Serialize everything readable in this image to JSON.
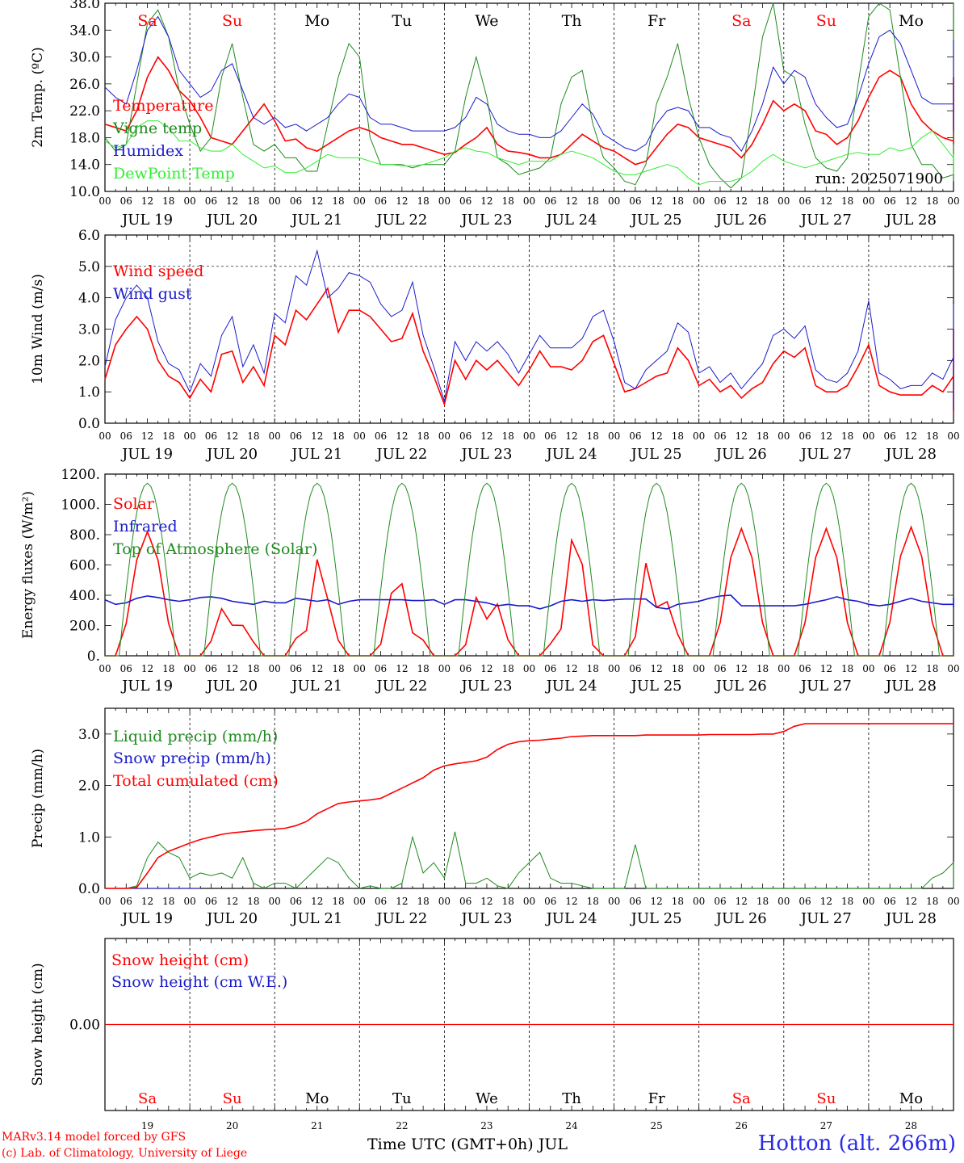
{
  "colors": {
    "red": "#ff0000",
    "blue": "#1a1acc",
    "green": "#1f8a1f",
    "lightgreen": "#33ee33",
    "weekend": "#ff0000",
    "weekday": "#000000"
  },
  "days": [
    "Sa",
    "Su",
    "Mo",
    "Tu",
    "We",
    "Th",
    "Fr",
    "Sa",
    "Su",
    "Mo"
  ],
  "weekend_days": [
    true,
    true,
    false,
    false,
    false,
    false,
    false,
    true,
    true,
    false
  ],
  "dates": [
    "JUL 19",
    "JUL 20",
    "JUL 21",
    "JUL 22",
    "JUL 23",
    "JUL 24",
    "JUL 25",
    "JUL 26",
    "JUL 27",
    "JUL 28"
  ],
  "day_numbers": [
    "19",
    "20",
    "21",
    "22",
    "23",
    "24",
    "25",
    "26",
    "27",
    "28"
  ],
  "hour_ticks": [
    "00",
    "06",
    "12",
    "18"
  ],
  "last_tick": "00",
  "run_label": "run: 2025071900",
  "footer": {
    "credit_line1": "MARv3.14 model forced by GFS",
    "credit_line2": "(c) Lab. of Climatology, University of Liege",
    "x_title": "Time UTC (GMT+0h) JUL",
    "station": "Hotton (alt. 266m)"
  },
  "chart_data": [
    {
      "type": "line",
      "title": "",
      "ylabel": "2m Temp. (ºC)",
      "ylim": [
        10,
        38
      ],
      "ytick_labels": [
        "10.0",
        "14.0",
        "18.0",
        "22.0",
        "26.0",
        "30.0",
        "34.0",
        "38.0"
      ],
      "x_unit": "hours since JUL 19 00 UTC",
      "x_step_hours": 3,
      "legend": "top-left",
      "series": [
        {
          "name": "Temperature",
          "color": "#ff0000",
          "values": [
            20,
            19.5,
            19,
            22,
            27,
            30,
            28,
            25,
            23.5,
            21,
            18,
            17.5,
            17,
            19,
            21,
            23,
            20.5,
            17.5,
            17.8,
            16.5,
            16,
            17,
            18,
            19,
            19.5,
            19,
            18,
            17.5,
            17,
            17,
            16.5,
            16,
            15.5,
            15.8,
            17,
            18,
            19.5,
            17,
            16,
            15.8,
            15.5,
            15,
            15,
            15.5,
            17,
            18.5,
            17.5,
            16.5,
            16,
            15,
            14,
            14.5,
            16.5,
            18.5,
            20,
            19.5,
            18,
            17.5,
            17,
            16.5,
            15,
            17,
            20,
            23.5,
            22,
            23,
            22,
            19,
            18.5,
            17,
            18,
            20.5,
            24,
            27,
            28,
            27,
            23,
            20.5,
            19,
            18,
            17.5,
            19,
            22,
            24.5,
            25,
            23,
            20.5,
            19.5,
            18.5,
            17.5,
            17,
            20,
            24,
            27,
            27,
            24,
            21,
            19
          ]
        },
        {
          "name": "Vigne temp",
          "color": "#1f8a1f",
          "values": [
            18,
            16,
            17,
            26,
            35,
            37,
            33,
            25,
            20,
            16,
            18,
            27,
            32,
            24,
            17,
            16,
            17,
            15,
            15,
            13,
            13,
            20,
            27,
            32,
            30,
            18,
            14,
            14,
            14,
            13.5,
            14,
            14,
            14,
            16,
            24,
            30,
            24,
            15,
            14,
            12.5,
            13,
            13.5,
            15,
            23,
            27,
            28,
            20,
            15,
            13.5,
            11.5,
            11,
            14,
            23,
            27,
            32,
            24,
            18,
            14,
            12,
            10.5,
            12,
            22,
            33,
            38,
            28,
            27,
            20,
            15,
            13.5,
            13,
            15,
            26,
            36,
            38,
            37,
            27,
            17,
            14,
            14,
            12,
            12.5,
            23,
            36,
            38,
            32,
            18,
            14,
            12.5,
            12,
            11.5,
            14,
            30,
            38,
            38,
            33,
            20,
            16,
            15.5
          ]
        },
        {
          "name": "Humidex",
          "color": "#1a1acc",
          "values": [
            25.5,
            24,
            23,
            28,
            34,
            36,
            33,
            28,
            26,
            24,
            25,
            28,
            29,
            25,
            21,
            20,
            21,
            19.5,
            20,
            19,
            20,
            21,
            23,
            24.5,
            24,
            21,
            20,
            20,
            19.5,
            19,
            19,
            19,
            19,
            19.5,
            21,
            24,
            23,
            20,
            19,
            18.5,
            18.5,
            18,
            18,
            19,
            21,
            23,
            21.5,
            18.5,
            17.5,
            16.5,
            16,
            17,
            20,
            22,
            22.5,
            22,
            19.5,
            19.5,
            18.5,
            18,
            16,
            19,
            23,
            28.5,
            26,
            28,
            27,
            23,
            21,
            19.5,
            20,
            24,
            29,
            33,
            34,
            32,
            28,
            24,
            23,
            23,
            23,
            25,
            27.5,
            29.5,
            29,
            26,
            23.5,
            22.5,
            21,
            20,
            19,
            22,
            27,
            31,
            32.5,
            29,
            25,
            22
          ]
        },
        {
          "name": "DewPoint Temp",
          "color": "#33ee33",
          "values": [
            17.5,
            16.5,
            17,
            19.5,
            20.5,
            20.5,
            19.5,
            17.5,
            17.5,
            16.5,
            16,
            16,
            17,
            15.5,
            14.5,
            13.5,
            13.8,
            12.8,
            12.8,
            13.5,
            14.5,
            15.5,
            15,
            15,
            15,
            14.5,
            14,
            14,
            13.8,
            13.8,
            14,
            14.5,
            15,
            16,
            16.5,
            16,
            15.8,
            15,
            14.5,
            14,
            14.5,
            14.5,
            14.5,
            15.5,
            16,
            15.5,
            15,
            14,
            13,
            12.5,
            12.5,
            13,
            13.5,
            14,
            13.5,
            12,
            11,
            11.5,
            11.5,
            11.5,
            12,
            13,
            14.5,
            15.5,
            14.5,
            14,
            13.5,
            14,
            14.5,
            15,
            15.5,
            15.8,
            15.5,
            15.5,
            16.5,
            16,
            16.5,
            18,
            19,
            17,
            15,
            15,
            15.5,
            15.5,
            15,
            14,
            13.8,
            13.5,
            13,
            13,
            13.5,
            14.5,
            15,
            15.5,
            14.5,
            13.5,
            13,
            12.5
          ]
        }
      ]
    },
    {
      "type": "line",
      "title": "",
      "ylabel": "10m Wind (m/s)",
      "ylim": [
        0,
        6
      ],
      "ytick_labels": [
        "0.0",
        "1.0",
        "2.0",
        "3.0",
        "4.0",
        "5.0",
        "6.0"
      ],
      "reference_line": 5.0,
      "x_unit": "hours since JUL 19 00 UTC",
      "x_step_hours": 3,
      "legend": "top-left",
      "series": [
        {
          "name": "Wind speed",
          "color": "#ff0000",
          "values": [
            1.4,
            2.5,
            3.0,
            3.4,
            3.0,
            2.0,
            1.5,
            1.3,
            0.8,
            1.4,
            1.0,
            2.2,
            2.3,
            1.3,
            1.8,
            1.2,
            2.8,
            2.5,
            3.6,
            3.3,
            3.8,
            4.3,
            2.9,
            3.6,
            3.6,
            3.4,
            3.0,
            2.6,
            2.7,
            3.5,
            2.3,
            1.5,
            0.6,
            2.0,
            1.4,
            2.0,
            1.7,
            2.0,
            1.6,
            1.2,
            1.7,
            2.3,
            1.8,
            1.8,
            1.7,
            2.0,
            2.6,
            2.8,
            1.9,
            1.0,
            1.1,
            1.3,
            1.5,
            1.6,
            2.4,
            2.0,
            1.2,
            1.4,
            1.0,
            1.2,
            0.8,
            1.1,
            1.3,
            1.9,
            2.3,
            2.1,
            2.4,
            1.2,
            1.0,
            1.0,
            1.2,
            1.8,
            2.5,
            1.2,
            1.0,
            0.9,
            0.9,
            0.9,
            1.2,
            1.0,
            1.5,
            1.8,
            3.0,
            2.2,
            1.5,
            0.6,
            1.0,
            0.3,
            0.7,
            0.6,
            1.3,
            2.0,
            2.6,
            2.2,
            2.5,
            1.5,
            2.4,
            1.0
          ]
        },
        {
          "name": "Wind gust",
          "color": "#1a1acc",
          "values": [
            1.8,
            3.3,
            4.0,
            4.4,
            4.0,
            2.6,
            1.9,
            1.7,
            1.0,
            1.9,
            1.5,
            2.8,
            3.4,
            1.8,
            2.5,
            1.6,
            3.5,
            3.2,
            4.7,
            4.4,
            5.5,
            4.0,
            4.3,
            4.8,
            4.7,
            4.5,
            3.8,
            3.4,
            3.6,
            4.5,
            2.8,
            1.8,
            0.7,
            2.6,
            2.0,
            2.6,
            2.3,
            2.6,
            2.2,
            1.6,
            2.2,
            2.8,
            2.4,
            2.4,
            2.4,
            2.7,
            3.4,
            3.6,
            2.6,
            1.3,
            1.1,
            1.7,
            2.0,
            2.3,
            3.2,
            2.9,
            1.6,
            1.8,
            1.3,
            1.6,
            1.1,
            1.5,
            1.9,
            2.8,
            3.0,
            2.7,
            3.1,
            1.7,
            1.4,
            1.3,
            1.6,
            2.3,
            3.9,
            1.6,
            1.4,
            1.1,
            1.2,
            1.2,
            1.6,
            1.4,
            2.1,
            2.5,
            3.8,
            2.9,
            1.9,
            0.8,
            1.3,
            0.4,
            0.9,
            0.8,
            1.6,
            2.5,
            3.3,
            2.8,
            3.2,
            2.0,
            3.0,
            1.3
          ]
        }
      ]
    },
    {
      "type": "line",
      "title": "",
      "ylabel": "Energy fluxes (W/m²)",
      "ylim": [
        0,
        1200
      ],
      "ytick_labels": [
        "0.",
        "200.",
        "400.",
        "600.",
        "800.",
        "1000.",
        "1200."
      ],
      "x_unit": "hours since JUL 19 00 UTC",
      "x_step_hours": 3,
      "legend": "top-left",
      "series": [
        {
          "name": "Solar",
          "color": "#ff0000",
          "day_peaks": [
            820,
            600,
            700,
            640,
            660,
            800,
            820,
            840,
            840,
            850
          ]
        },
        {
          "name": "Infrared",
          "color": "#1a1acc",
          "values": [
            370,
            340,
            350,
            380,
            395,
            385,
            370,
            360,
            370,
            385,
            390,
            380,
            360,
            350,
            340,
            360,
            350,
            350,
            380,
            370,
            360,
            370,
            340,
            360,
            370,
            370,
            370,
            370,
            370,
            365,
            365,
            370,
            340,
            370,
            370,
            360,
            350,
            330,
            340,
            330,
            330,
            310,
            330,
            360,
            370,
            360,
            370,
            365,
            370,
            375,
            375,
            375,
            320,
            310,
            340,
            350,
            360,
            380,
            395,
            400,
            330,
            330,
            330,
            330,
            330,
            330,
            340,
            355,
            370,
            390,
            370,
            360,
            340,
            330,
            340,
            360,
            380,
            360,
            350,
            340,
            340,
            335,
            335,
            340,
            340,
            330,
            330,
            320,
            320,
            330,
            340,
            340,
            350,
            370,
            345,
            385,
            340,
            345
          ]
        },
        {
          "name": "Top of Atmosphere (Solar)",
          "color": "#1f8a1f",
          "peak": 1140
        }
      ]
    },
    {
      "type": "line",
      "title": "",
      "ylabel": "Precip (mm/h)",
      "ylim": [
        0,
        3.5
      ],
      "ytick_labels": [
        "0.0",
        "1.0",
        "2.0",
        "3.0"
      ],
      "x_unit": "hours since JUL 19 00 UTC",
      "x_step_hours": 3,
      "legend": "top-left",
      "series": [
        {
          "name": "Liquid precip (mm/h)",
          "color": "#1f8a1f",
          "values": [
            0,
            0,
            0,
            0.05,
            0.6,
            0.9,
            0.7,
            0.6,
            0.2,
            0.3,
            0.25,
            0.3,
            0.2,
            0.6,
            0.1,
            0,
            0.1,
            0.1,
            0,
            0.2,
            0.4,
            0.6,
            0.5,
            0.2,
            0,
            0.05,
            0,
            0,
            0.1,
            1.0,
            0.3,
            0.5,
            0.2,
            1.1,
            0.1,
            0.1,
            0.2,
            0.05,
            0,
            0.3,
            0.5,
            0.7,
            0.2,
            0.1,
            0.1,
            0.05,
            0,
            0,
            0,
            0,
            0.85,
            0,
            0,
            0,
            0,
            0,
            0,
            0,
            0,
            0,
            0,
            0,
            0,
            0,
            0,
            0,
            0,
            0,
            0,
            0,
            0,
            0,
            0,
            0,
            0,
            0,
            0,
            0,
            0.2,
            0.3,
            0.5,
            0.05,
            0,
            0,
            0,
            0,
            0,
            0,
            0,
            0,
            0,
            0,
            0,
            0,
            0,
            0,
            0,
            0
          ]
        },
        {
          "name": "Snow precip (mm/h)",
          "color": "#1a1acc",
          "values": [
            0,
            0,
            0,
            0,
            0,
            0,
            0,
            0,
            0,
            0
          ]
        },
        {
          "name": "Total cumulated (cm)",
          "color": "#ff0000",
          "values": [
            0,
            0,
            0,
            0.02,
            0.3,
            0.6,
            0.72,
            0.8,
            0.88,
            0.95,
            1.0,
            1.05,
            1.08,
            1.1,
            1.12,
            1.14,
            1.15,
            1.17,
            1.22,
            1.3,
            1.45,
            1.55,
            1.65,
            1.68,
            1.7,
            1.72,
            1.75,
            1.85,
            1.95,
            2.05,
            2.15,
            2.3,
            2.38,
            2.42,
            2.45,
            2.48,
            2.55,
            2.7,
            2.8,
            2.85,
            2.87,
            2.88,
            2.9,
            2.92,
            2.95,
            2.96,
            2.97,
            2.97,
            2.97,
            2.97,
            2.97,
            2.98,
            2.98,
            2.98,
            2.98,
            2.98,
            2.98,
            2.99,
            2.99,
            2.99,
            2.99,
            2.99,
            3.0,
            3.0,
            3.05,
            3.15,
            3.2,
            3.2,
            3.2,
            3.2,
            3.2,
            3.2,
            3.2,
            3.2,
            3.2,
            3.2,
            3.2,
            3.2,
            3.2,
            3.2,
            3.2,
            3.2,
            3.2,
            3.2,
            3.2,
            3.2,
            3.2,
            3.2,
            3.2,
            3.2,
            3.2,
            3.2,
            3.2,
            3.2,
            3.2,
            3.2,
            3.2,
            3.2
          ]
        }
      ]
    },
    {
      "type": "line",
      "title": "",
      "ylabel": "Snow height (cm)",
      "ylim": [
        -1,
        1
      ],
      "ytick_labels": [
        "0.00"
      ],
      "x_unit": "hours since JUL 19 00 UTC",
      "legend": "top-left",
      "series": [
        {
          "name": "Snow height (cm)",
          "color": "#ff0000",
          "values": [
            0,
            0
          ]
        },
        {
          "name": "Snow height (cm W.E.)",
          "color": "#1a1acc",
          "values": [
            0,
            0
          ]
        }
      ]
    }
  ]
}
